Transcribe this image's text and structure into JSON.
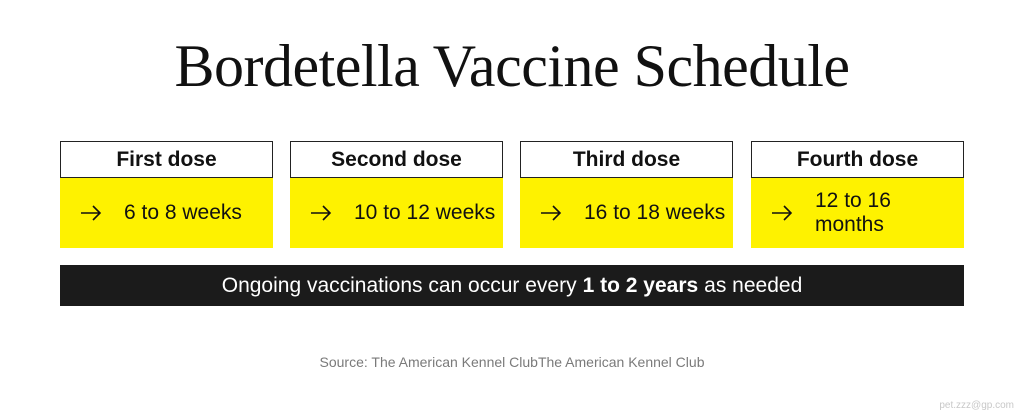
{
  "title": "Bordetella Vaccine Schedule",
  "doses": [
    {
      "label": "First dose",
      "timing": "6 to 8 weeks"
    },
    {
      "label": "Second dose",
      "timing": "10 to 12 weeks"
    },
    {
      "label": "Third dose",
      "timing": "16 to 18 weeks"
    },
    {
      "label": "Fourth dose",
      "timing": "12 to 16 months"
    }
  ],
  "banner": {
    "prefix": "Ongoing vaccinations can occur every",
    "highlight": "1 to 2 years",
    "suffix": "as needed"
  },
  "source": "Source: The American Kennel ClubThe American Kennel Club",
  "watermark": "pet.zzz@gp.com",
  "colors": {
    "highlight": "#fef200",
    "banner": "#1b1b1b"
  },
  "icons": {
    "dose_arrow": "arrow-right-icon"
  }
}
